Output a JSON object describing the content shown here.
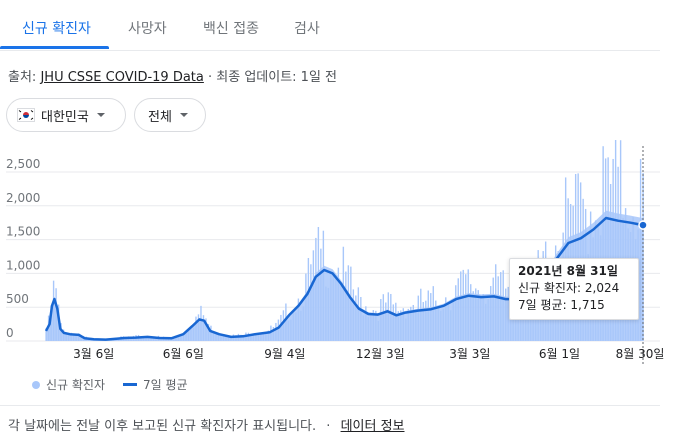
{
  "tabs": [
    {
      "label": "신규 확진자",
      "active": true
    },
    {
      "label": "사망자",
      "active": false
    },
    {
      "label": "백신 접종",
      "active": false
    },
    {
      "label": "검사",
      "active": false
    }
  ],
  "source": {
    "prefix": "출처:",
    "link": "JHU CSSE COVID-19 Data",
    "suffix": "· 최종 업데이트: 1일 전"
  },
  "filters": {
    "country": "대한민국",
    "range": "전체"
  },
  "tooltip": {
    "date": "2021년 8월 31일",
    "cases_line": "신규 확진자: 2,024",
    "avg_line": "7일 평균: 1,715"
  },
  "legend": {
    "bars_label": "신규 확진자",
    "line_label": "7일 평균"
  },
  "footer": {
    "text": "각 날짜에는 전날 이후 보고된 신규 확진자가 표시됩니다.",
    "separator": "·",
    "link": "데이터 정보"
  },
  "colors": {
    "accent": "#1a73e8",
    "bars": "#a8c7fa",
    "line": "#1967d2"
  },
  "chart_data": {
    "type": "bar",
    "series": [
      {
        "name": "신규 확진자",
        "type": "bar"
      },
      {
        "name": "7일 평균",
        "type": "line"
      }
    ],
    "x_tick_labels": [
      "3월 6일",
      "6월 6일",
      "9월 4일",
      "12월 3일",
      "3월 3일",
      "6월 1일",
      "8월 30일"
    ],
    "y_ticks": [
      0,
      500,
      1000,
      1500,
      2000,
      2500
    ],
    "y_tick_labels": [
      "0",
      "500",
      "1,000",
      "1,500",
      "2,000",
      "2,500"
    ],
    "ylim": [
      0,
      2500
    ],
    "grid": true,
    "legend_position": "bottom-left",
    "seven_day_average": [
      [
        0,
        150
      ],
      [
        0.6,
        250
      ],
      [
        1.0,
        520
      ],
      [
        1.4,
        620
      ],
      [
        1.9,
        480
      ],
      [
        2.4,
        180
      ],
      [
        3,
        120
      ],
      [
        4,
        100
      ],
      [
        5.5,
        90
      ],
      [
        6.5,
        40
      ],
      [
        8,
        25
      ],
      [
        10,
        20
      ],
      [
        12,
        35
      ],
      [
        13.1,
        45
      ],
      [
        15,
        50
      ],
      [
        17,
        60
      ],
      [
        19,
        45
      ],
      [
        21,
        40
      ],
      [
        23,
        100
      ],
      [
        24.5,
        220
      ],
      [
        25.7,
        320
      ],
      [
        26.5,
        300
      ],
      [
        27.5,
        150
      ],
      [
        29,
        100
      ],
      [
        31,
        60
      ],
      [
        33,
        70
      ],
      [
        35,
        100
      ],
      [
        37.5,
        130
      ],
      [
        39,
        200
      ],
      [
        40.7,
        380
      ],
      [
        42.3,
        520
      ],
      [
        43.8,
        700
      ],
      [
        45.2,
        950
      ],
      [
        46.6,
        1050
      ],
      [
        48,
        1000
      ],
      [
        49.4,
        850
      ],
      [
        50.9,
        650
      ],
      [
        52.4,
        480
      ],
      [
        54,
        400
      ],
      [
        55.6,
        390
      ],
      [
        57.2,
        440
      ],
      [
        58.7,
        380
      ],
      [
        60.2,
        420
      ],
      [
        62.3,
        450
      ],
      [
        64.5,
        470
      ],
      [
        66.6,
        520
      ],
      [
        68.7,
        620
      ],
      [
        70.8,
        670
      ],
      [
        72.9,
        650
      ],
      [
        75,
        660
      ],
      [
        77,
        620
      ],
      [
        79,
        620
      ],
      [
        81.2,
        700
      ],
      [
        83.3,
        900
      ],
      [
        85.4,
        1200
      ],
      [
        87.5,
        1450
      ],
      [
        89.6,
        1520
      ],
      [
        91.7,
        1650
      ],
      [
        93.8,
        1820
      ],
      [
        95.8,
        1780
      ],
      [
        97.9,
        1750
      ],
      [
        100,
        1715
      ]
    ],
    "highlighted_point": {
      "x": 100,
      "y": 1715
    }
  }
}
